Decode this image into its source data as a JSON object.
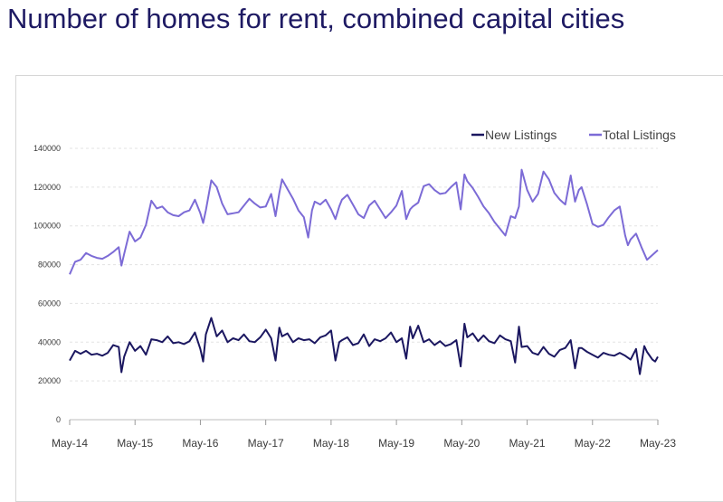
{
  "title": "Number of homes for rent, combined capital cities",
  "colors": {
    "new": "#1b1760",
    "total": "#7c6bd6",
    "title": "#1e1a63",
    "axis": "#bdbdbd"
  },
  "chart_data": {
    "type": "line",
    "title": "Number of homes for rent, combined capital cities",
    "xlabel": "",
    "ylabel": "",
    "x_ticks": [
      "May-14",
      "May-15",
      "May-16",
      "May-17",
      "May-18",
      "May-19",
      "May-20",
      "May-21",
      "May-22",
      "May-23"
    ],
    "y_ticks": [
      "0",
      "20000",
      "40000",
      "60000",
      "80000",
      "100000",
      "120000",
      "140000"
    ],
    "ylim": [
      0,
      140000
    ],
    "xlim": [
      0,
      108
    ],
    "grid": "horizontal dashed",
    "legend_position": "top-right",
    "x_unit": "months since May-14",
    "series": [
      {
        "name": "New Listings",
        "color": "#1b1760",
        "points": [
          [
            0,
            30500
          ],
          [
            1,
            35500
          ],
          [
            2,
            34000
          ],
          [
            3,
            35500
          ],
          [
            4,
            33500
          ],
          [
            5,
            34000
          ],
          [
            6,
            33000
          ],
          [
            7,
            34500
          ],
          [
            8,
            38500
          ],
          [
            9,
            37500
          ],
          [
            9.5,
            24500
          ],
          [
            10,
            32500
          ],
          [
            11,
            40000
          ],
          [
            12,
            35500
          ],
          [
            13,
            38000
          ],
          [
            14,
            33500
          ],
          [
            15,
            41500
          ],
          [
            16,
            41000
          ],
          [
            17,
            40000
          ],
          [
            18,
            43000
          ],
          [
            19,
            39500
          ],
          [
            20,
            40000
          ],
          [
            21,
            39000
          ],
          [
            22,
            40500
          ],
          [
            23,
            45000
          ],
          [
            24,
            36500
          ],
          [
            24.5,
            30000
          ],
          [
            25,
            44000
          ],
          [
            26,
            52500
          ],
          [
            27,
            43000
          ],
          [
            28,
            46000
          ],
          [
            29,
            40000
          ],
          [
            30,
            42000
          ],
          [
            31,
            41000
          ],
          [
            32,
            44000
          ],
          [
            33,
            40500
          ],
          [
            34,
            40000
          ],
          [
            35,
            42500
          ],
          [
            36,
            46500
          ],
          [
            37,
            42000
          ],
          [
            37.8,
            30500
          ],
          [
            38.5,
            47500
          ],
          [
            39,
            43000
          ],
          [
            40,
            44500
          ],
          [
            41,
            40000
          ],
          [
            42,
            42000
          ],
          [
            43,
            41000
          ],
          [
            44,
            41500
          ],
          [
            45,
            39500
          ],
          [
            46,
            42500
          ],
          [
            47,
            43500
          ],
          [
            48,
            46000
          ],
          [
            48.8,
            30500
          ],
          [
            49.5,
            40000
          ],
          [
            50,
            41000
          ],
          [
            51,
            42500
          ],
          [
            52,
            38500
          ],
          [
            53,
            39500
          ],
          [
            54,
            44000
          ],
          [
            55,
            38000
          ],
          [
            56,
            41500
          ],
          [
            57,
            40500
          ],
          [
            58,
            42000
          ],
          [
            59,
            45000
          ],
          [
            60,
            40000
          ],
          [
            61,
            42000
          ],
          [
            61.8,
            31500
          ],
          [
            62.5,
            48000
          ],
          [
            63,
            42000
          ],
          [
            64,
            48500
          ],
          [
            65,
            40000
          ],
          [
            66,
            41500
          ],
          [
            67,
            38500
          ],
          [
            68,
            40500
          ],
          [
            69,
            38000
          ],
          [
            70,
            39000
          ],
          [
            71,
            41000
          ],
          [
            71.8,
            27500
          ],
          [
            72.5,
            49500
          ],
          [
            73,
            42500
          ],
          [
            74,
            44500
          ],
          [
            75,
            40500
          ],
          [
            76,
            43500
          ],
          [
            77,
            40500
          ],
          [
            78,
            39500
          ],
          [
            79,
            43500
          ],
          [
            80,
            41500
          ],
          [
            81,
            40500
          ],
          [
            81.8,
            29500
          ],
          [
            82.5,
            48000
          ],
          [
            83,
            37500
          ],
          [
            84,
            38000
          ],
          [
            85,
            34500
          ],
          [
            86,
            33500
          ],
          [
            87,
            37500
          ],
          [
            88,
            34000
          ],
          [
            89,
            32500
          ],
          [
            90,
            36000
          ],
          [
            91,
            37000
          ],
          [
            92,
            41000
          ],
          [
            92.8,
            26500
          ],
          [
            93.5,
            37000
          ],
          [
            94,
            37000
          ],
          [
            95,
            35000
          ],
          [
            96,
            33500
          ],
          [
            97,
            32000
          ],
          [
            98,
            34500
          ],
          [
            99,
            33500
          ],
          [
            100,
            33000
          ],
          [
            101,
            34500
          ],
          [
            102,
            33000
          ],
          [
            103,
            31000
          ],
          [
            104,
            36500
          ],
          [
            104.7,
            23500
          ],
          [
            105.5,
            38000
          ],
          [
            106,
            35000
          ],
          [
            107,
            31000
          ],
          [
            107.5,
            30000
          ],
          [
            108,
            32500
          ]
        ]
      },
      {
        "name": "Total Listings",
        "color": "#7c6bd6",
        "points": [
          [
            0,
            75000
          ],
          [
            1,
            81500
          ],
          [
            2,
            82500
          ],
          [
            3,
            86000
          ],
          [
            4,
            84500
          ],
          [
            5,
            83500
          ],
          [
            6,
            83000
          ],
          [
            7,
            84500
          ],
          [
            8,
            86500
          ],
          [
            9,
            89000
          ],
          [
            9.5,
            79500
          ],
          [
            10,
            85500
          ],
          [
            11,
            97000
          ],
          [
            12,
            92000
          ],
          [
            13,
            94000
          ],
          [
            14,
            100500
          ],
          [
            15,
            113000
          ],
          [
            16,
            109000
          ],
          [
            17,
            110000
          ],
          [
            18,
            107000
          ],
          [
            19,
            105500
          ],
          [
            20,
            105000
          ],
          [
            21,
            107000
          ],
          [
            22,
            108000
          ],
          [
            23,
            113500
          ],
          [
            24,
            106500
          ],
          [
            24.5,
            101500
          ],
          [
            25,
            108000
          ],
          [
            26,
            123500
          ],
          [
            27,
            120000
          ],
          [
            28,
            111500
          ],
          [
            29,
            106000
          ],
          [
            30,
            106500
          ],
          [
            31,
            107000
          ],
          [
            32,
            110500
          ],
          [
            33,
            114000
          ],
          [
            34,
            111500
          ],
          [
            35,
            109500
          ],
          [
            36,
            110000
          ],
          [
            37,
            116500
          ],
          [
            37.8,
            105000
          ],
          [
            38.5,
            117000
          ],
          [
            39,
            124000
          ],
          [
            40,
            119000
          ],
          [
            41,
            114000
          ],
          [
            42,
            108000
          ],
          [
            43,
            104500
          ],
          [
            43.8,
            94000
          ],
          [
            44.5,
            108000
          ],
          [
            45,
            112500
          ],
          [
            46,
            111000
          ],
          [
            47,
            113500
          ],
          [
            48,
            108500
          ],
          [
            48.8,
            103500
          ],
          [
            49.5,
            110000
          ],
          [
            50,
            113500
          ],
          [
            51,
            116000
          ],
          [
            52,
            111000
          ],
          [
            53,
            106000
          ],
          [
            54,
            104000
          ],
          [
            55,
            110500
          ],
          [
            56,
            113000
          ],
          [
            57,
            108500
          ],
          [
            58,
            104000
          ],
          [
            59,
            107000
          ],
          [
            60,
            110500
          ],
          [
            61,
            118000
          ],
          [
            61.8,
            103500
          ],
          [
            62.5,
            108500
          ],
          [
            63,
            110000
          ],
          [
            64,
            112000
          ],
          [
            65,
            120500
          ],
          [
            66,
            121500
          ],
          [
            67,
            118500
          ],
          [
            68,
            116500
          ],
          [
            69,
            117000
          ],
          [
            70,
            120000
          ],
          [
            71,
            122500
          ],
          [
            71.8,
            108500
          ],
          [
            72.5,
            126500
          ],
          [
            73,
            123000
          ],
          [
            74,
            119500
          ],
          [
            75,
            115000
          ],
          [
            76,
            110000
          ],
          [
            77,
            106500
          ],
          [
            78,
            102000
          ],
          [
            79,
            98500
          ],
          [
            80,
            95000
          ],
          [
            81,
            105000
          ],
          [
            81.8,
            104000
          ],
          [
            82.5,
            110000
          ],
          [
            83,
            129000
          ],
          [
            84,
            118500
          ],
          [
            85,
            112500
          ],
          [
            86,
            116500
          ],
          [
            87,
            128000
          ],
          [
            88,
            124000
          ],
          [
            89,
            117000
          ],
          [
            90,
            113500
          ],
          [
            91,
            111000
          ],
          [
            92,
            126000
          ],
          [
            92.8,
            112500
          ],
          [
            93.5,
            118500
          ],
          [
            94,
            120000
          ],
          [
            95,
            111000
          ],
          [
            96,
            101000
          ],
          [
            97,
            99500
          ],
          [
            98,
            100500
          ],
          [
            99,
            104500
          ],
          [
            100,
            108000
          ],
          [
            101,
            110000
          ],
          [
            102,
            95000
          ],
          [
            102.5,
            90000
          ],
          [
            103,
            93000
          ],
          [
            104,
            96000
          ],
          [
            105,
            89000
          ],
          [
            106,
            82500
          ],
          [
            107,
            85000
          ],
          [
            108,
            87500
          ]
        ]
      }
    ]
  },
  "legend": {
    "new": "New Listings",
    "total": "Total Listings"
  }
}
